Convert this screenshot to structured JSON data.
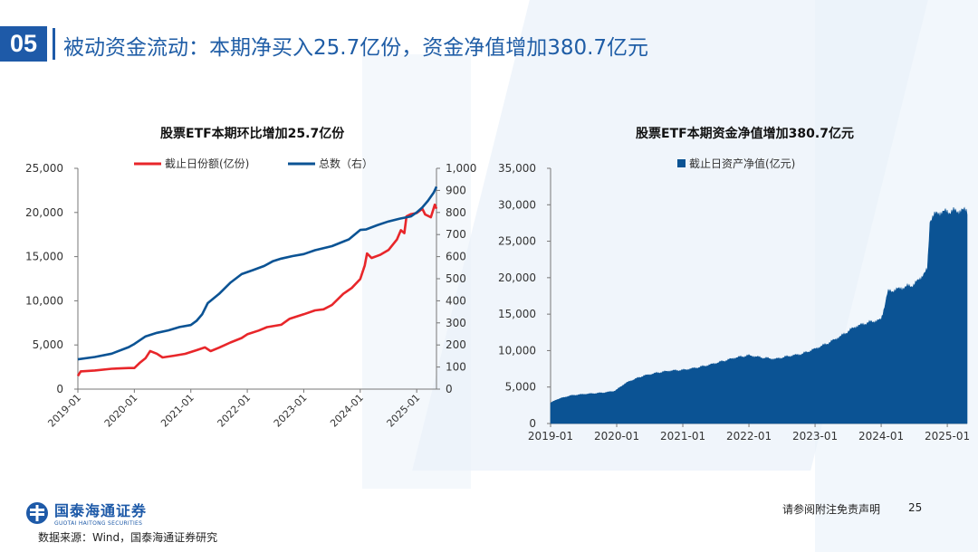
{
  "header": {
    "number": "05",
    "title": "被动资金流动：本期净买入25.7亿份，资金净值增加380.7亿元"
  },
  "colors": {
    "brand": "#1e5aa8",
    "shares_line": "#e8262a",
    "total_line": "#0b5394",
    "area_fill": "#0b5394"
  },
  "footer": {
    "logo_cn": "国泰海通证券",
    "logo_en": "GUOTAI HAITONG SECURITIES",
    "source": "数据来源：Wind，国泰海通证券研究",
    "disclaimer": "请参阅附注免责声明",
    "page": "25"
  },
  "chart_data": [
    {
      "type": "line",
      "title": "股票ETF本期环比增加25.7亿份",
      "x_ticks": [
        "2019-01",
        "2020-01",
        "2021-01",
        "2022-01",
        "2023-01",
        "2024-01",
        "2025-01"
      ],
      "y_left": {
        "ticks": [
          "0",
          "5,000",
          "10,000",
          "15,000",
          "20,000",
          "25,000"
        ],
        "lim": [
          0,
          25000
        ]
      },
      "y_right": {
        "ticks": [
          "0",
          "100",
          "200",
          "300",
          "400",
          "500",
          "600",
          "700",
          "800",
          "900",
          "1,000"
        ],
        "lim": [
          0,
          1000
        ]
      },
      "legend": "top",
      "series": [
        {
          "name": "截止日份额(亿份)",
          "axis": "left",
          "points": [
            [
              2019.0,
              1500
            ],
            [
              2019.05,
              2000
            ],
            [
              2019.3,
              2100
            ],
            [
              2019.6,
              2300
            ],
            [
              2019.9,
              2400
            ],
            [
              2020.0,
              2400
            ],
            [
              2020.1,
              3000
            ],
            [
              2020.2,
              3500
            ],
            [
              2020.28,
              4300
            ],
            [
              2020.4,
              4000
            ],
            [
              2020.5,
              3600
            ],
            [
              2020.7,
              3800
            ],
            [
              2020.9,
              4000
            ],
            [
              2021.1,
              4400
            ],
            [
              2021.25,
              4700
            ],
            [
              2021.35,
              4300
            ],
            [
              2021.5,
              4700
            ],
            [
              2021.7,
              5300
            ],
            [
              2021.9,
              5800
            ],
            [
              2022.0,
              6200
            ],
            [
              2022.2,
              6600
            ],
            [
              2022.35,
              7000
            ],
            [
              2022.6,
              7300
            ],
            [
              2022.75,
              8000
            ],
            [
              2023.0,
              8500
            ],
            [
              2023.2,
              8900
            ],
            [
              2023.35,
              9000
            ],
            [
              2023.5,
              9500
            ],
            [
              2023.7,
              10800
            ],
            [
              2023.85,
              11500
            ],
            [
              2024.0,
              12500
            ],
            [
              2024.08,
              14000
            ],
            [
              2024.12,
              15300
            ],
            [
              2024.2,
              14800
            ],
            [
              2024.35,
              15200
            ],
            [
              2024.5,
              15800
            ],
            [
              2024.65,
              17000
            ],
            [
              2024.72,
              18000
            ],
            [
              2024.78,
              17600
            ],
            [
              2024.82,
              19500
            ],
            [
              2024.9,
              19800
            ],
            [
              2025.0,
              20000
            ],
            [
              2025.1,
              20500
            ],
            [
              2025.15,
              19800
            ],
            [
              2025.25,
              19400
            ],
            [
              2025.32,
              20800
            ],
            [
              2025.35,
              20400
            ]
          ]
        },
        {
          "name": "总数（右）",
          "axis": "right",
          "points": [
            [
              2019.0,
              135
            ],
            [
              2019.3,
              145
            ],
            [
              2019.6,
              160
            ],
            [
              2019.9,
              190
            ],
            [
              2020.0,
              205
            ],
            [
              2020.2,
              240
            ],
            [
              2020.4,
              255
            ],
            [
              2020.6,
              265
            ],
            [
              2020.8,
              280
            ],
            [
              2021.0,
              290
            ],
            [
              2021.1,
              310
            ],
            [
              2021.2,
              340
            ],
            [
              2021.3,
              390
            ],
            [
              2021.5,
              430
            ],
            [
              2021.7,
              480
            ],
            [
              2021.9,
              520
            ],
            [
              2022.1,
              540
            ],
            [
              2022.3,
              560
            ],
            [
              2022.45,
              580
            ],
            [
              2022.6,
              590
            ],
            [
              2022.8,
              600
            ],
            [
              2023.0,
              610
            ],
            [
              2023.2,
              630
            ],
            [
              2023.5,
              650
            ],
            [
              2023.8,
              680
            ],
            [
              2024.0,
              720
            ],
            [
              2024.1,
              720
            ],
            [
              2024.3,
              740
            ],
            [
              2024.5,
              760
            ],
            [
              2024.7,
              775
            ],
            [
              2024.9,
              785
            ],
            [
              2025.0,
              800
            ],
            [
              2025.1,
              820
            ],
            [
              2025.2,
              850
            ],
            [
              2025.3,
              890
            ],
            [
              2025.35,
              920
            ]
          ]
        }
      ]
    },
    {
      "type": "area",
      "title": "股票ETF本期资金净值增加380.7亿元",
      "x_ticks": [
        "2019-01",
        "2020-01",
        "2021-01",
        "2022-01",
        "2023-01",
        "2024-01",
        "2025-01"
      ],
      "y": {
        "ticks": [
          "0",
          "5,000",
          "10,000",
          "15,000",
          "20,000",
          "25,000",
          "30,000",
          "35,000"
        ],
        "lim": [
          0,
          35000
        ]
      },
      "legend": "top",
      "series": [
        {
          "name": "截止日资产净值(亿元)",
          "points": [
            [
              2019.0,
              2800
            ],
            [
              2019.1,
              3300
            ],
            [
              2019.3,
              3800
            ],
            [
              2019.5,
              4000
            ],
            [
              2019.8,
              4200
            ],
            [
              2019.95,
              4400
            ],
            [
              2020.0,
              4600
            ],
            [
              2020.1,
              5300
            ],
            [
              2020.2,
              5800
            ],
            [
              2020.4,
              6500
            ],
            [
              2020.6,
              6900
            ],
            [
              2020.8,
              7200
            ],
            [
              2021.0,
              7300
            ],
            [
              2021.2,
              7600
            ],
            [
              2021.4,
              8000
            ],
            [
              2021.6,
              8500
            ],
            [
              2021.8,
              9000
            ],
            [
              2022.0,
              9300
            ],
            [
              2022.2,
              9000
            ],
            [
              2022.4,
              8800
            ],
            [
              2022.6,
              9200
            ],
            [
              2022.8,
              9500
            ],
            [
              2023.0,
              10200
            ],
            [
              2023.2,
              11000
            ],
            [
              2023.4,
              12000
            ],
            [
              2023.6,
              13200
            ],
            [
              2023.8,
              13800
            ],
            [
              2024.0,
              14200
            ],
            [
              2024.05,
              16000
            ],
            [
              2024.1,
              18000
            ],
            [
              2024.3,
              18500
            ],
            [
              2024.5,
              19000
            ],
            [
              2024.6,
              20000
            ],
            [
              2024.7,
              21000
            ],
            [
              2024.74,
              28000
            ],
            [
              2024.85,
              28800
            ],
            [
              2025.0,
              29000
            ],
            [
              2025.2,
              29100
            ],
            [
              2025.3,
              29200
            ]
          ]
        }
      ]
    }
  ]
}
